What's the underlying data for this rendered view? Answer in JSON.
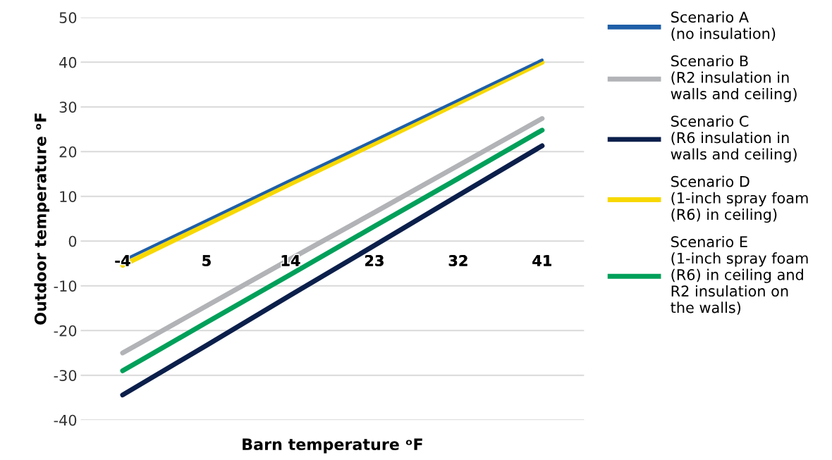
{
  "chart_data": {
    "type": "line",
    "xlabel": "Barn temperature ᵒF",
    "ylabel": "Outdoor temperature ᵒF",
    "categories": [
      "-4",
      "5",
      "14",
      "23",
      "32",
      "41"
    ],
    "series": [
      {
        "name": "Scenario A\n(no insulation)",
        "color": "#1f5fa8",
        "values": [
          -4.4,
          4.6,
          13.6,
          22.5,
          31.5,
          40.5
        ]
      },
      {
        "name": "Scenario B\n(R2 insulation in\nwalls and ceiling)",
        "color": "#b1b3b6",
        "values": [
          -25,
          -14.5,
          -4,
          6.4,
          16.9,
          27.4
        ]
      },
      {
        "name": "Scenario C\n(R6 insulation in\nwalls and ceiling)",
        "color": "#0b1f4b",
        "values": [
          -34.4,
          -23.3,
          -12.1,
          -1,
          10.2,
          21.3
        ]
      },
      {
        "name": "Scenario D\n(1-inch spray foam\n(R6) in ceiling)",
        "color": "#f7d800",
        "values": [
          -5.4,
          3.7,
          12.8,
          21.8,
          30.9,
          40
        ]
      },
      {
        "name": "Scenario E\n(1-inch spray foam\n(R6) in ceiling and\nR2 insulation on\nthe walls)",
        "color": "#00a05a",
        "values": [
          -29,
          -18.2,
          -7.5,
          3.3,
          14,
          24.8
        ]
      }
    ],
    "ylim": [
      -40,
      50
    ],
    "yticks": [
      -40,
      -30,
      -20,
      -10,
      0,
      10,
      20,
      30,
      40,
      50
    ],
    "grid": "y",
    "legend": "right",
    "marker": "none",
    "line_style": "solid"
  }
}
